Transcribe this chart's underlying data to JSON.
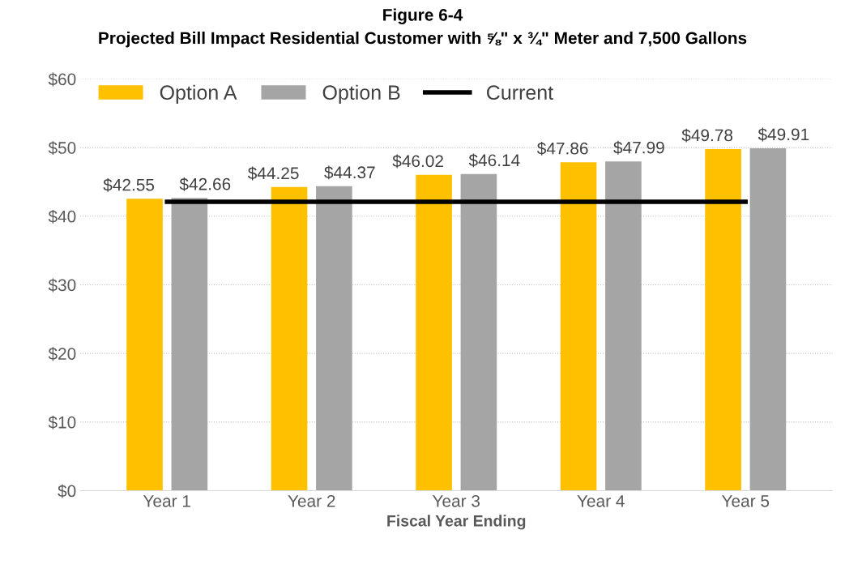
{
  "chart_data": {
    "type": "bar",
    "title": "Figure 6-4\nProjected Bill Impact Residential Customer with ⅝\" x ¾\" Meter and 7,500 Gallons",
    "xlabel": "Fiscal Year Ending",
    "categories": [
      "Year 1",
      "Year 2",
      "Year 3",
      "Year 4",
      "Year 5"
    ],
    "series": [
      {
        "name": "Option A",
        "color": "#ffc000",
        "values": [
          42.55,
          44.25,
          46.02,
          47.86,
          49.78
        ],
        "value_labels": [
          "$42.55",
          "$44.25",
          "$46.02",
          "$47.86",
          "$49.78"
        ]
      },
      {
        "name": "Option B",
        "color": "#a5a5a5",
        "values": [
          42.66,
          44.37,
          46.14,
          47.99,
          49.91
        ],
        "value_labels": [
          "$42.66",
          "$44.37",
          "$46.14",
          "$47.99",
          "$49.91"
        ]
      },
      {
        "name": "Current",
        "type": "line",
        "color": "#000000",
        "values": [
          42.1,
          42.1,
          42.1,
          42.1,
          42.1
        ]
      }
    ],
    "ylim": [
      0,
      60
    ],
    "yticks": [
      {
        "value": 0,
        "label": "$0"
      },
      {
        "value": 10,
        "label": "$10"
      },
      {
        "value": 20,
        "label": "$20"
      },
      {
        "value": 30,
        "label": "$30"
      },
      {
        "value": 40,
        "label": "$40"
      },
      {
        "value": 50,
        "label": "$50"
      },
      {
        "value": 60,
        "label": "$60"
      }
    ],
    "grid": "y",
    "legend": "top left"
  }
}
